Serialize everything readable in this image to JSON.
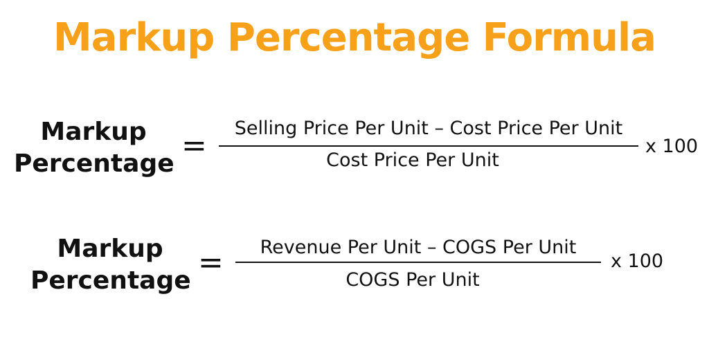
{
  "title": "Markup Percentage Formula",
  "formulas": [
    {
      "lhs_line1": "Markup",
      "lhs_line2": "Percentage",
      "equals": "=",
      "numerator": "Selling Price Per Unit – Cost Price Per Unit",
      "denominator": "Cost Price Per Unit",
      "multiplier": "x 100"
    },
    {
      "lhs_line1": "Markup",
      "lhs_line2": "Percentage",
      "equals": "=",
      "numerator": "Revenue Per Unit – COGS Per Unit",
      "denominator": "COGS Per Unit",
      "multiplier": "x 100"
    }
  ]
}
